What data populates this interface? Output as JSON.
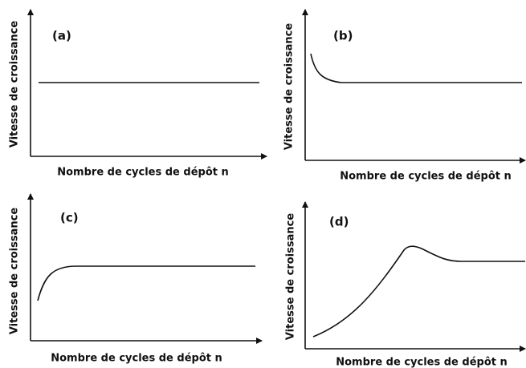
{
  "panels": [
    {
      "label": "(a)",
      "y_axis_label": "Vitesse de croissance",
      "x_axis_label": "Nombre  de cycles de dépôt n"
    },
    {
      "label": "(b)",
      "y_axis_label": "Vitesse de croissance",
      "x_axis_label": "Nombre  de cycles de dépôt n"
    },
    {
      "label": "(c)",
      "y_axis_label": "Vitesse de croissance",
      "x_axis_label": "Nombre  de cycles de dépôt n"
    },
    {
      "label": "(d)",
      "y_axis_label": "Vitesse de croissance",
      "x_axis_label": "Nombre  de cycles de dépôt n"
    }
  ]
}
